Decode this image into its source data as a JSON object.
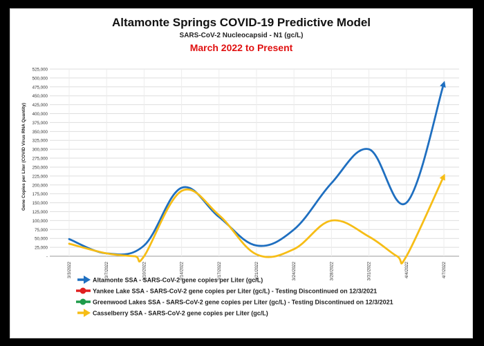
{
  "chart_data": {
    "type": "line",
    "title": "Altamonte Springs COVID-19 Predictive Model",
    "subtitle": "SARS-CoV-2 Nucleocapsid - N1 (gc/L)",
    "date_range": "March 2022 to Present",
    "ylabel": "Gene Copies per Liter (COVID Virus RNA Quantity)",
    "xlabel": "",
    "ylim": [
      0,
      525000
    ],
    "y_ticks": [
      0,
      25000,
      50000,
      75000,
      100000,
      125000,
      150000,
      175000,
      200000,
      225000,
      250000,
      275000,
      300000,
      325000,
      350000,
      375000,
      400000,
      425000,
      450000,
      475000,
      500000,
      525000
    ],
    "y_tick_labels": [
      "-",
      "25,000",
      "50,000",
      "75,000",
      "100,000",
      "125,000",
      "150,000",
      "175,000",
      "200,000",
      "225,000",
      "250,000",
      "275,000",
      "300,000",
      "325,000",
      "350,000",
      "375,000",
      "400,000",
      "425,000",
      "450,000",
      "475,000",
      "500,000",
      "525,000"
    ],
    "categories": [
      "3/3/2022",
      "3/7/2022",
      "3/10/2022",
      "3/14/2022",
      "3/17/2022",
      "3/21/2022",
      "3/24/2022",
      "3/28/2022",
      "3/31/2022",
      "4/4/2022",
      "4/7/2022"
    ],
    "grid": true,
    "series": [
      {
        "name": "Altamonte SSA - SARS-CoV-2 gene copies per Liter (gc/L)",
        "color": "#1f6fc0",
        "x": [
          0,
          1,
          2,
          3,
          4,
          5,
          6,
          7,
          8,
          9,
          10
        ],
        "values": [
          48000,
          8000,
          30000,
          192000,
          110000,
          30000,
          75000,
          205000,
          300000,
          150000,
          485000
        ],
        "end_arrow": true
      },
      {
        "name": "Casselberry SSA - SARS-CoV-2 gene copies per Liter (gc/L)",
        "color": "#f6bd16",
        "x": [
          0,
          1,
          1.75,
          2,
          3,
          4,
          5,
          6,
          7,
          8,
          8.75,
          9,
          10
        ],
        "values": [
          35000,
          8000,
          0,
          0,
          183000,
          115000,
          5000,
          20000,
          100000,
          55000,
          0,
          0,
          225000
        ],
        "end_arrow": true
      }
    ],
    "legend": [
      {
        "label": "Altamonte SSA - SARS-CoV-2 gene copies per Liter (gc/L)",
        "color": "#1f6fc0",
        "marker": "arrow"
      },
      {
        "label": "Yankee Lake SSA - SARS-CoV-2 gene copies per Liter (gc/L) - Testing Discontinued on 12/3/2021",
        "color": "#e02020",
        "marker": "dot"
      },
      {
        "label": "Greenwood Lakes SSA - SARS-CoV-2 gene copies per Liter (gc/L) - Testing Discontinued on 12/3/2021",
        "color": "#1f9b4a",
        "marker": "dot"
      },
      {
        "label": "Casselberry SSA - SARS-CoV-2 gene copies per Liter (gc/L)",
        "color": "#f6bd16",
        "marker": "arrow"
      }
    ],
    "legend_position": "bottom-left"
  }
}
